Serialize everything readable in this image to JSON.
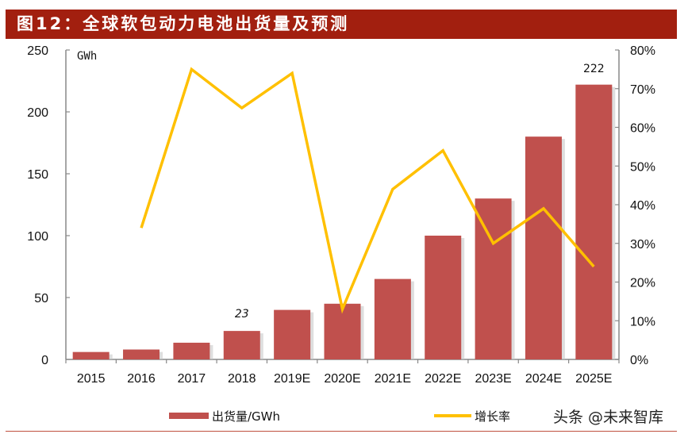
{
  "header": {
    "title": "图12：全球软包动力电池出货量及预测"
  },
  "watermark": "头条 @未来智库",
  "colors": {
    "title_bg": "#a21f0f",
    "bar": "#c0504d",
    "line": "#ffc000",
    "axis": "#888888"
  },
  "chart_data": {
    "type": "bar",
    "title": "全球软包动力电池出货量及预测",
    "categories": [
      "2015",
      "2016",
      "2017",
      "2018",
      "2019E",
      "2020E",
      "2021E",
      "2022E",
      "2023E",
      "2024E",
      "2025E"
    ],
    "series": [
      {
        "name": "出货量/GWh",
        "type": "bar",
        "axis": "left",
        "values": [
          6,
          8,
          13.5,
          23,
          40,
          45,
          65,
          100,
          130,
          180,
          222
        ]
      },
      {
        "name": "增长率",
        "type": "line",
        "axis": "right",
        "values": [
          null,
          34,
          75,
          65,
          74,
          13,
          44,
          54,
          30,
          39,
          24
        ]
      }
    ],
    "data_labels": [
      {
        "category": "2018",
        "text": "23"
      },
      {
        "category": "2025E",
        "text": "222"
      }
    ],
    "ylabel": "GWh",
    "ylim": [
      0,
      250
    ],
    "yticks": [
      0,
      50,
      100,
      150,
      200,
      250
    ],
    "y2lim": [
      0,
      80
    ],
    "y2ticks": [
      "0%",
      "10%",
      "20%",
      "30%",
      "40%",
      "50%",
      "60%",
      "70%",
      "80%"
    ],
    "legend": {
      "position": "bottom",
      "entries": [
        "出货量/GWh",
        "增长率"
      ]
    },
    "grid": false
  }
}
